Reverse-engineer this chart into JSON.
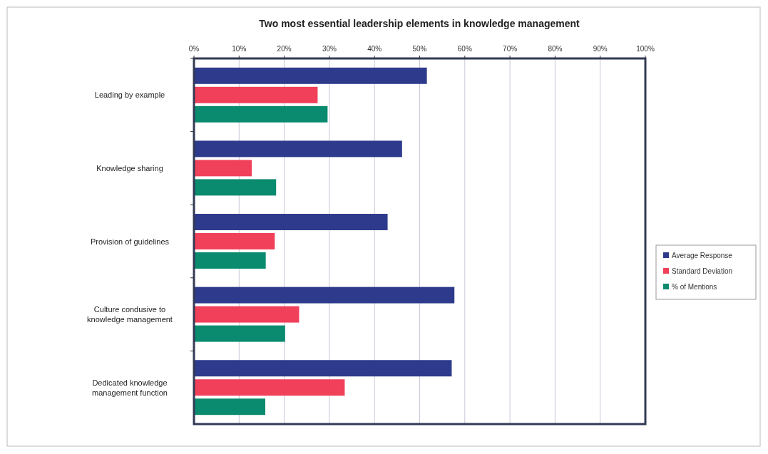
{
  "chart_data": {
    "type": "bar",
    "orientation": "horizontal",
    "title": "Two most essential leadership elements in knowledge management",
    "categories": [
      "Leading by example",
      "Knowledge sharing",
      "Provision of guidelines",
      "Culture condusive to knowledge management",
      "Dedicated knowledge management function"
    ],
    "series": [
      {
        "name": "Average Response",
        "color": "#2e3a8c",
        "values": [
          51.6,
          46.1,
          42.9,
          57.7,
          57.1
        ]
      },
      {
        "name": "Standard Deviation",
        "color": "#f0405a",
        "values": [
          27.4,
          12.8,
          17.9,
          23.3,
          33.4
        ]
      },
      {
        "name": "% of Mentions",
        "color": "#0a8a6e",
        "values": [
          29.6,
          18.2,
          15.9,
          20.2,
          15.8
        ]
      }
    ],
    "xlim": [
      0,
      100
    ],
    "xticks": [
      {
        "value": 0,
        "label": "0%"
      },
      {
        "value": 10,
        "label": "10%"
      },
      {
        "value": 20,
        "label": "20%"
      },
      {
        "value": 30,
        "label": "30%"
      },
      {
        "value": 40,
        "label": "40%"
      },
      {
        "value": 50,
        "label": "50%"
      },
      {
        "value": 60,
        "label": "60%"
      },
      {
        "value": 70,
        "label": "70%"
      },
      {
        "value": 80,
        "label": "80%"
      },
      {
        "value": 90,
        "label": "90%"
      },
      {
        "value": 100,
        "label": "100%"
      }
    ],
    "grid": "x",
    "legend": "right"
  }
}
